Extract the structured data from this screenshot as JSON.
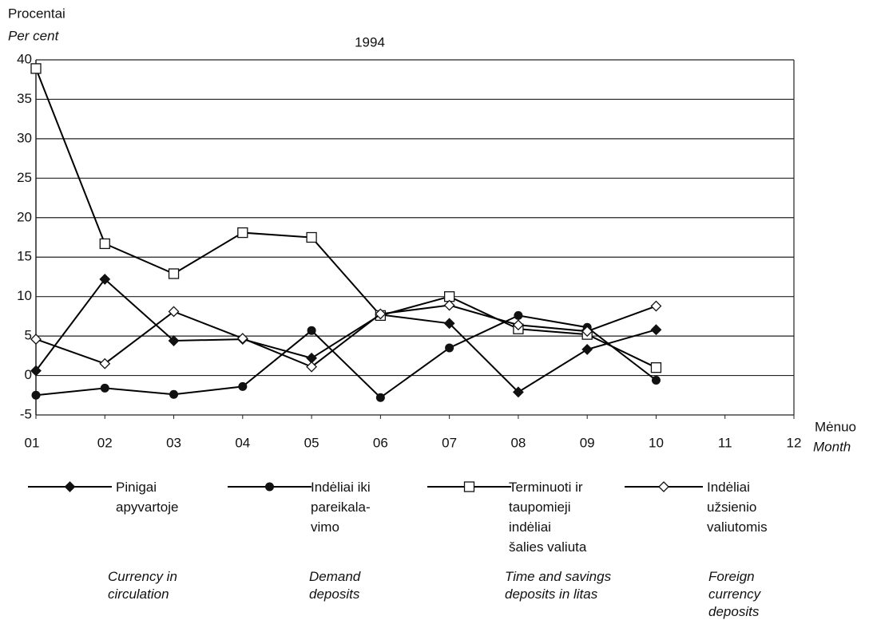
{
  "chart_data": {
    "type": "line",
    "y_label": "Procentai",
    "y_label_en": "Per cent",
    "title": "1994",
    "x_label": "Mėnuo",
    "x_label_en": "Month",
    "categories": [
      "01",
      "02",
      "03",
      "04",
      "05",
      "06",
      "07",
      "08",
      "09",
      "10",
      "11",
      "12"
    ],
    "ylim": [
      -5,
      40
    ],
    "yticks": [
      -5,
      0,
      5,
      10,
      15,
      20,
      25,
      30,
      35,
      40
    ],
    "grid": true,
    "series": [
      {
        "name": "Pinigai\napyvartoje",
        "description": "Currency in\ncirculation",
        "color": "#000000",
        "marker": "diamond-filled",
        "values": [
          0.6,
          12.2,
          4.4,
          4.6,
          2.2,
          7.7,
          6.6,
          -2.1,
          3.3,
          5.8,
          null,
          null
        ]
      },
      {
        "name": "Indėliai iki\npareikala-\nvimo",
        "description": "Demand\ndeposits",
        "color": "#000000",
        "marker": "circle-filled",
        "values": [
          -2.5,
          -1.6,
          -2.4,
          -1.4,
          5.7,
          -2.8,
          3.5,
          7.6,
          6.1,
          -0.6,
          null,
          null
        ]
      },
      {
        "name": "Terminuoti ir\ntaupomieji\nindėliai\nšalies valiuta",
        "description": "Time and savings\ndeposits in litas",
        "color": "#000000",
        "marker": "square-open",
        "values": [
          38.9,
          16.7,
          12.9,
          18.1,
          17.5,
          7.6,
          10.0,
          5.9,
          5.2,
          1.0,
          null,
          null
        ]
      },
      {
        "name": "Indėliai\nužsienio\nvaliutomis",
        "description": "Foreign\ncurrency\ndeposits",
        "color": "#000000",
        "marker": "diamond-open",
        "values": [
          4.6,
          1.5,
          8.1,
          4.7,
          1.1,
          7.8,
          8.9,
          6.4,
          5.6,
          8.8,
          null,
          null
        ]
      }
    ]
  }
}
